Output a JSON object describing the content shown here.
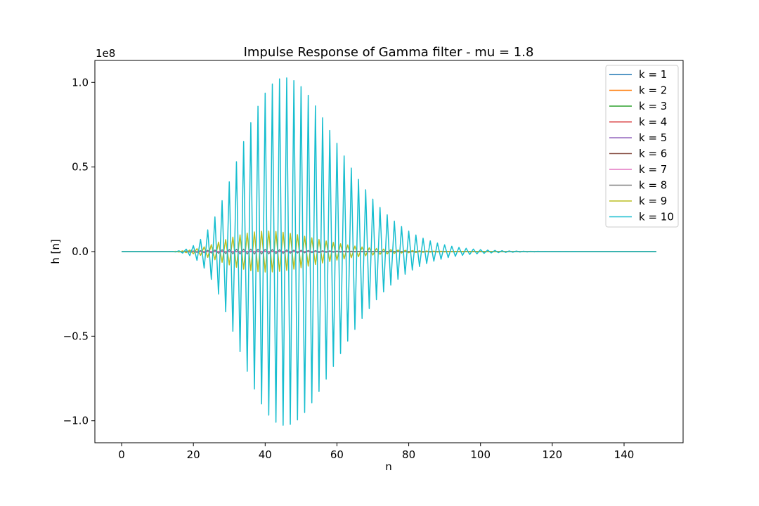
{
  "chart_data": {
    "type": "line",
    "title": "Impulse Response of Gamma filter - mu = 1.8",
    "xlabel": "n",
    "ylabel": "h [n]",
    "y_offset_label": "1e8",
    "xlim": [
      -7.45,
      156.45
    ],
    "ylim": [
      -1.13,
      1.13
    ],
    "y_scale": 100000000,
    "x_ticks": [
      0,
      20,
      40,
      60,
      80,
      100,
      120,
      140
    ],
    "x_tick_labels": [
      "0",
      "20",
      "40",
      "60",
      "80",
      "100",
      "120",
      "140"
    ],
    "y_ticks": [
      -1.0,
      -0.5,
      0.0,
      0.5,
      1.0
    ],
    "y_tick_labels": [
      "−1.0",
      "−0.5",
      "0.0",
      "0.5",
      "1.0"
    ],
    "grid": false,
    "legend_position": "top-right",
    "mu": 1.8,
    "n_range": [
      0,
      149
    ],
    "series": [
      {
        "name": "k = 1",
        "k": 1,
        "color": "#1f77b4"
      },
      {
        "name": "k = 2",
        "k": 2,
        "color": "#ff7f0e"
      },
      {
        "name": "k = 3",
        "k": 3,
        "color": "#2ca02c"
      },
      {
        "name": "k = 4",
        "k": 4,
        "color": "#d62728"
      },
      {
        "name": "k = 5",
        "k": 5,
        "color": "#9467bd"
      },
      {
        "name": "k = 6",
        "k": 6,
        "color": "#8c564b"
      },
      {
        "name": "k = 7",
        "k": 7,
        "color": "#e377c2"
      },
      {
        "name": "k = 8",
        "k": 8,
        "color": "#7f7f7f"
      },
      {
        "name": "k = 9",
        "k": 9,
        "color": "#bcbd22"
      },
      {
        "name": "k = 10",
        "k": 10,
        "color": "#17becf"
      }
    ]
  }
}
